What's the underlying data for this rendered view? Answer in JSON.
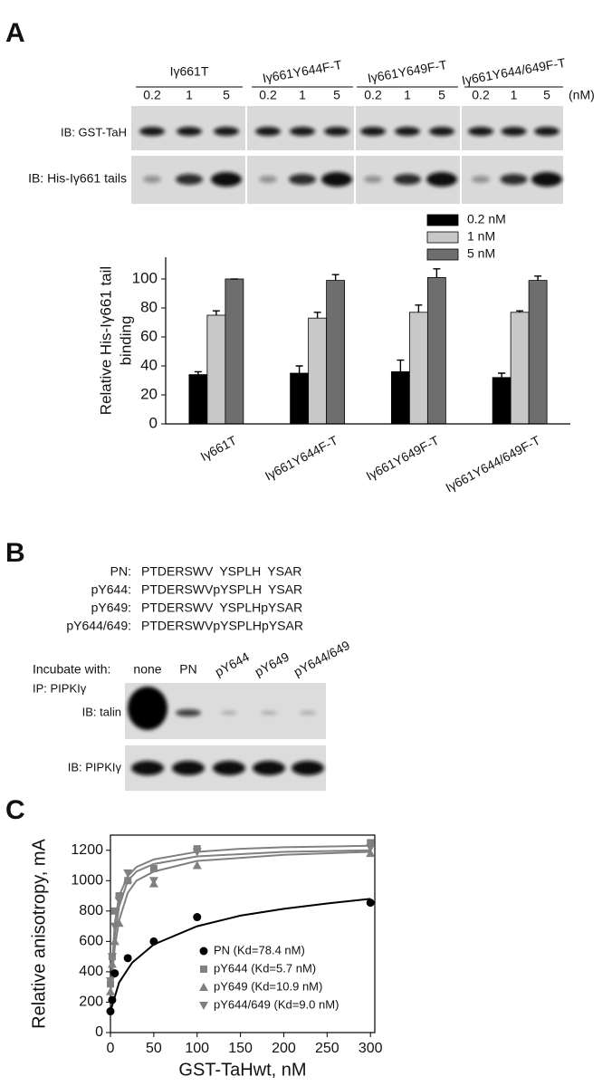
{
  "panel_a": {
    "label": "A",
    "groups": [
      "Iγ661T",
      "Iγ661Y644F-T",
      "Iγ661Y649F-T",
      "Iγ661Y644/649F-T"
    ],
    "concentrations": [
      "0.2",
      "1",
      "5"
    ],
    "unit": "(nM)",
    "rows": [
      "IB: GST-TaH",
      "IB: His-Iγ661 tails"
    ]
  },
  "chart_data": [
    {
      "type": "bar",
      "y_label": [
        "Relative His-Iγ661 tail",
        "binding"
      ],
      "categories": [
        "Iγ661T",
        "Iγ661Y644F-T",
        "Iγ661Y649F-T",
        "Iγ661Y644/649F-T"
      ],
      "series": [
        {
          "name": "0.2 nM",
          "color": "#000000",
          "values": [
            34,
            35,
            36,
            32
          ],
          "errors": [
            2,
            5,
            8,
            3
          ]
        },
        {
          "name": "1 nM",
          "color": "#c8c8c8",
          "values": [
            75,
            73,
            77,
            77
          ],
          "errors": [
            3,
            4,
            5,
            1
          ]
        },
        {
          "name": "5 nM",
          "color": "#6e6e6e",
          "values": [
            100,
            99,
            101,
            99
          ],
          "errors": [
            0,
            4,
            6,
            3
          ]
        }
      ],
      "ylim": [
        0,
        115
      ],
      "yticks": [
        0,
        20,
        40,
        60,
        80,
        100
      ],
      "legend": "top-right"
    },
    {
      "type": "scatter",
      "x_label": "GST-TaHwt, nM",
      "y_label": "Relative anisotropy, mA",
      "xlim": [
        0,
        305
      ],
      "ylim": [
        0,
        1300
      ],
      "xticks": [
        0,
        50,
        100,
        150,
        200,
        250,
        300
      ],
      "yticks": [
        0,
        200,
        400,
        600,
        800,
        1000,
        1200
      ],
      "legend": "bottom-right",
      "series": [
        {
          "name": "PN (Kd=78.4 nM)",
          "color": "#000000",
          "marker": "circle",
          "x": [
            0,
            2,
            5,
            20,
            50,
            100,
            300
          ],
          "values": [
            140,
            215,
            390,
            490,
            600,
            760,
            855
          ],
          "fit_x": [
            0,
            10,
            25,
            50,
            100,
            150,
            200,
            250,
            300
          ],
          "fit_values": [
            140,
            330,
            460,
            580,
            700,
            770,
            815,
            850,
            880
          ]
        },
        {
          "name": "pY644 (Kd=5.7 nM)",
          "color": "#808080",
          "marker": "square",
          "x": [
            0,
            2,
            5,
            10,
            20,
            50,
            100,
            300
          ],
          "values": [
            320,
            500,
            800,
            900,
            1000,
            1080,
            1210,
            1250
          ],
          "fit_x": [
            0,
            5,
            10,
            20,
            30,
            50,
            100,
            150,
            200,
            300
          ],
          "fit_values": [
            250,
            720,
            900,
            1030,
            1090,
            1140,
            1190,
            1210,
            1220,
            1230
          ]
        },
        {
          "name": "pY649 (Kd=10.9 nM)",
          "color": "#808080",
          "marker": "triangle-up",
          "x": [
            0,
            2,
            5,
            10,
            20,
            50,
            100,
            300
          ],
          "values": [
            270,
            450,
            600,
            720,
            1010,
            980,
            1100,
            1180
          ],
          "fit_x": [
            0,
            5,
            10,
            20,
            30,
            50,
            100,
            200,
            300
          ],
          "fit_values": [
            250,
            560,
            740,
            920,
            1000,
            1060,
            1130,
            1170,
            1190
          ]
        },
        {
          "name": "pY644/649 (Kd=9.0 nM)",
          "color": "#808080",
          "marker": "triangle-down",
          "x": [
            0,
            2,
            5,
            10,
            20,
            50,
            100,
            300
          ],
          "values": [
            340,
            500,
            700,
            870,
            1050,
            1000,
            1190,
            1215
          ],
          "fit_x": [
            0,
            5,
            10,
            20,
            30,
            50,
            100,
            200,
            300
          ],
          "fit_values": [
            250,
            640,
            830,
            1000,
            1060,
            1110,
            1160,
            1190,
            1200
          ]
        }
      ]
    }
  ],
  "panel_b": {
    "label": "B",
    "sequences": [
      {
        "label": "PN:",
        "segments": [
          "PTDERSWV",
          "YSPLH",
          "YSAR"
        ]
      },
      {
        "label": "pY644:",
        "segments": [
          "PTDERSWV",
          "pY",
          "SPLH",
          "YSAR"
        ]
      },
      {
        "label": "pY649:",
        "segments": [
          "PTDERSWV",
          "YSPLH",
          "pY",
          "SAR"
        ]
      },
      {
        "label": "pY644/649:",
        "segments": [
          "PTDERSWV",
          "pY",
          "SPLH",
          "pY",
          "SAR"
        ]
      }
    ],
    "incubate_label": "Incubate with:",
    "lanes": [
      "none",
      "PN",
      "pY644",
      "pY649",
      "pY644/649"
    ],
    "ip_label": "IP: PIPKIγ",
    "rows": [
      "IB: talin",
      "IB: PIPKIγ"
    ]
  },
  "panel_c": {
    "label": "C"
  }
}
